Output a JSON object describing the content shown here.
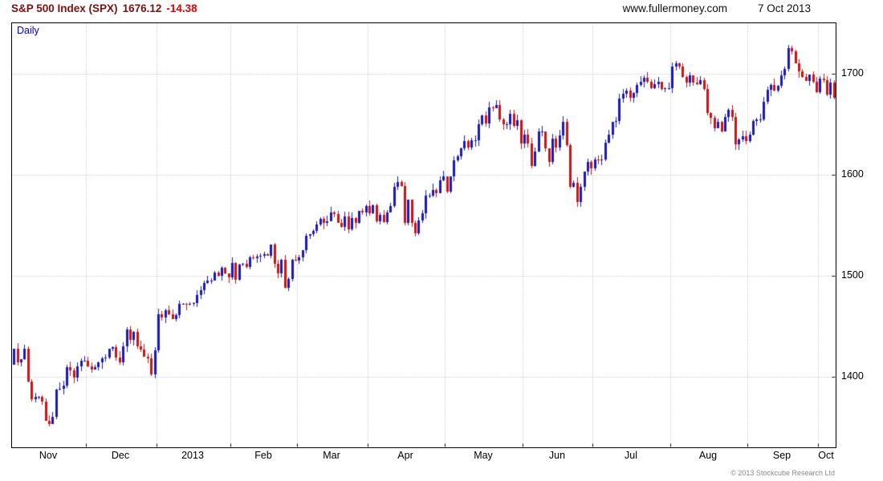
{
  "header": {
    "title": "S&P 500 Index (SPX)",
    "price": "1676.12",
    "change": "-14.38",
    "website": "www.fullermoney.com",
    "date": "7 Oct 2013"
  },
  "frequency_label": "Daily",
  "footer": {
    "copyright": "© 2013 Stockcube Research Ltd"
  },
  "chart_data": {
    "type": "candlestick",
    "title": "S&P 500 Index (SPX) daily candles, Nov 2012 - Oct 2013",
    "xlabel": "",
    "ylabel": "",
    "ylim": [
      1330,
      1750
    ],
    "yticks": [
      1400,
      1500,
      1600,
      1700
    ],
    "grid": true,
    "legend": "none",
    "up_color": "#1a1ab8",
    "down_color": "#cc1414",
    "grid_color": "#b4b4b4",
    "first_open": 1412,
    "months": [
      {
        "label": "Nov",
        "start": 0
      },
      {
        "label": "Dec",
        "start": 21
      },
      {
        "label": "2013",
        "start": 41
      },
      {
        "label": "Feb",
        "start": 62
      },
      {
        "label": "Mar",
        "start": 81
      },
      {
        "label": "Apr",
        "start": 101
      },
      {
        "label": "May",
        "start": 123
      },
      {
        "label": "Jun",
        "start": 145
      },
      {
        "label": "Jul",
        "start": 165
      },
      {
        "label": "Aug",
        "start": 187
      },
      {
        "label": "Sep",
        "start": 209
      },
      {
        "label": "Oct",
        "start": 229
      }
    ],
    "closes": [
      1428,
      1414,
      1417,
      1428,
      1395,
      1378,
      1380,
      1380,
      1375,
      1356,
      1353,
      1360,
      1387,
      1388,
      1391,
      1409,
      1406,
      1399,
      1410,
      1416,
      1416,
      1410,
      1407,
      1409,
      1414,
      1418,
      1419,
      1428,
      1429,
      1419,
      1414,
      1430,
      1447,
      1436,
      1444,
      1430,
      1427,
      1420,
      1418,
      1402,
      1426,
      1462,
      1459,
      1466,
      1462,
      1457,
      1461,
      1472,
      1472,
      1471,
      1472,
      1473,
      1481,
      1486,
      1493,
      1495,
      1495,
      1503,
      1500,
      1508,
      1502,
      1498,
      1513,
      1496,
      1511,
      1512,
      1509,
      1518,
      1517,
      1519,
      1520,
      1521,
      1520,
      1531,
      1512,
      1502,
      1516,
      1488,
      1497,
      1516,
      1515,
      1518,
      1525,
      1540,
      1541,
      1544,
      1551,
      1556,
      1552,
      1554,
      1563,
      1561,
      1552,
      1548,
      1559,
      1546,
      1557,
      1552,
      1564,
      1563,
      1569,
      1562,
      1570,
      1554,
      1560,
      1553,
      1563,
      1569,
      1588,
      1593,
      1589,
      1552,
      1575,
      1552,
      1542,
      1555,
      1562,
      1579,
      1579,
      1585,
      1582,
      1594,
      1598,
      1583,
      1598,
      1614,
      1618,
      1626,
      1633,
      1627,
      1634,
      1634,
      1650,
      1659,
      1651,
      1667,
      1666,
      1669,
      1655,
      1650,
      1650,
      1660,
      1648,
      1654,
      1631,
      1640,
      1631,
      1609,
      1623,
      1643,
      1643,
      1626,
      1613,
      1636,
      1627,
      1639,
      1652,
      1629,
      1588,
      1592,
      1573,
      1588,
      1603,
      1613,
      1606,
      1615,
      1614,
      1615,
      1632,
      1640,
      1652,
      1653,
      1675,
      1680,
      1683,
      1676,
      1681,
      1689,
      1692,
      1696,
      1692,
      1686,
      1690,
      1692,
      1685,
      1686,
      1686,
      1707,
      1710,
      1707,
      1697,
      1691,
      1698,
      1691,
      1690,
      1694,
      1685,
      1661,
      1656,
      1646,
      1652,
      1643,
      1657,
      1664,
      1657,
      1630,
      1635,
      1638,
      1633,
      1640,
      1653,
      1655,
      1655,
      1672,
      1684,
      1689,
      1683,
      1688,
      1698,
      1705,
      1725,
      1722,
      1710,
      1702,
      1697,
      1693,
      1699,
      1692,
      1682,
      1695,
      1694,
      1679,
      1691,
      1676
    ]
  }
}
